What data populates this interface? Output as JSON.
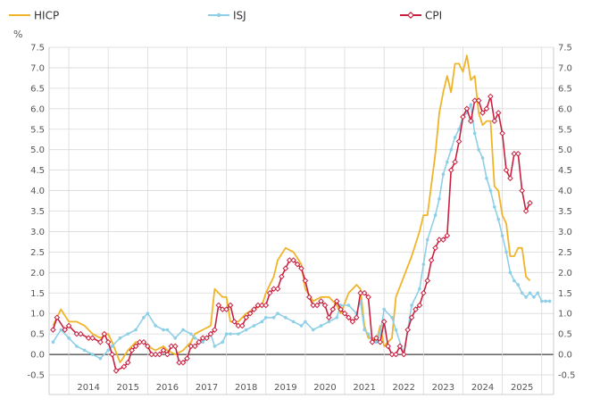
{
  "chart_data": {
    "type": "line",
    "unit_label": "%",
    "ylim": [
      -0.5,
      7.5
    ],
    "y_ticks": [
      "-0.5",
      "0.0",
      "0.5",
      "1.0",
      "1.5",
      "2.0",
      "2.5",
      "3.0",
      "3.5",
      "4.0",
      "4.5",
      "5.0",
      "5.5",
      "6.0",
      "6.5",
      "7.0",
      "7.5"
    ],
    "x_range": [
      2013.5,
      2025.7
    ],
    "year_labels": [
      "2014",
      "2015",
      "2016",
      "2017",
      "2018",
      "2019",
      "2020",
      "2021",
      "2022",
      "2023",
      "2024",
      "2025"
    ],
    "grid": true,
    "legend_position": "top",
    "series": [
      {
        "name": "HICP",
        "color": "#f0b429",
        "marker": "none",
        "points": [
          [
            2013.6,
            0.7
          ],
          [
            2013.8,
            1.1
          ],
          [
            2014.0,
            0.8
          ],
          [
            2014.2,
            0.8
          ],
          [
            2014.4,
            0.7
          ],
          [
            2014.6,
            0.5
          ],
          [
            2014.8,
            0.4
          ],
          [
            2015.0,
            0.5
          ],
          [
            2015.1,
            0.3
          ],
          [
            2015.3,
            -0.2
          ],
          [
            2015.5,
            0.1
          ],
          [
            2015.7,
            0.3
          ],
          [
            2015.9,
            0.3
          ],
          [
            2016.0,
            0.2
          ],
          [
            2016.2,
            0.1
          ],
          [
            2016.4,
            0.2
          ],
          [
            2016.5,
            0.1
          ],
          [
            2016.7,
            0.0
          ],
          [
            2016.9,
            0.1
          ],
          [
            2017.1,
            0.3
          ],
          [
            2017.2,
            0.5
          ],
          [
            2017.4,
            0.6
          ],
          [
            2017.6,
            0.7
          ],
          [
            2017.7,
            1.6
          ],
          [
            2017.9,
            1.4
          ],
          [
            2018.0,
            1.4
          ],
          [
            2018.1,
            0.8
          ],
          [
            2018.3,
            0.8
          ],
          [
            2018.5,
            1.0
          ],
          [
            2018.7,
            1.1
          ],
          [
            2018.9,
            1.2
          ],
          [
            2019.0,
            1.5
          ],
          [
            2019.2,
            1.9
          ],
          [
            2019.3,
            2.3
          ],
          [
            2019.5,
            2.6
          ],
          [
            2019.7,
            2.5
          ],
          [
            2019.9,
            2.2
          ],
          [
            2020.0,
            1.6
          ],
          [
            2020.2,
            1.3
          ],
          [
            2020.4,
            1.4
          ],
          [
            2020.6,
            1.4
          ],
          [
            2020.8,
            1.2
          ],
          [
            2020.9,
            1.0
          ],
          [
            2021.1,
            1.5
          ],
          [
            2021.3,
            1.7
          ],
          [
            2021.4,
            1.6
          ],
          [
            2021.5,
            0.7
          ],
          [
            2021.6,
            0.4
          ],
          [
            2021.7,
            0.4
          ],
          [
            2021.8,
            0.3
          ],
          [
            2021.9,
            0.7
          ],
          [
            2022.0,
            0.2
          ],
          [
            2022.2,
            0.4
          ],
          [
            2022.3,
            1.4
          ],
          [
            2022.5,
            1.9
          ],
          [
            2022.7,
            2.4
          ],
          [
            2022.9,
            3.0
          ],
          [
            2023.0,
            3.4
          ],
          [
            2023.1,
            3.4
          ],
          [
            2023.3,
            4.9
          ],
          [
            2023.4,
            5.9
          ],
          [
            2023.5,
            6.4
          ],
          [
            2023.6,
            6.8
          ],
          [
            2023.7,
            6.4
          ],
          [
            2023.8,
            7.1
          ],
          [
            2023.9,
            7.1
          ],
          [
            2024.0,
            6.9
          ],
          [
            2024.1,
            7.3
          ],
          [
            2024.2,
            6.7
          ],
          [
            2024.3,
            6.8
          ],
          [
            2024.4,
            5.9
          ],
          [
            2024.5,
            5.6
          ],
          [
            2024.6,
            5.7
          ],
          [
            2024.7,
            5.7
          ],
          [
            2024.8,
            4.1
          ],
          [
            2024.9,
            4.0
          ],
          [
            2025.0,
            3.4
          ],
          [
            2025.1,
            3.2
          ],
          [
            2025.2,
            2.4
          ],
          [
            2025.3,
            2.4
          ],
          [
            2025.4,
            2.6
          ],
          [
            2025.5,
            2.6
          ],
          [
            2025.6,
            1.9
          ],
          [
            2025.7,
            1.8
          ]
        ]
      },
      {
        "name": "ISJ",
        "color": "#8ecfe8",
        "marker": "dot",
        "points": [
          [
            2013.6,
            0.3
          ],
          [
            2013.8,
            0.6
          ],
          [
            2014.0,
            0.4
          ],
          [
            2014.2,
            0.2
          ],
          [
            2014.4,
            0.1
          ],
          [
            2014.6,
            0.0
          ],
          [
            2014.8,
            -0.1
          ],
          [
            2015.0,
            0.1
          ],
          [
            2015.1,
            0.2
          ],
          [
            2015.3,
            0.4
          ],
          [
            2015.5,
            0.5
          ],
          [
            2015.7,
            0.6
          ],
          [
            2015.9,
            0.9
          ],
          [
            2016.0,
            1.0
          ],
          [
            2016.2,
            0.7
          ],
          [
            2016.4,
            0.6
          ],
          [
            2016.5,
            0.6
          ],
          [
            2016.7,
            0.4
          ],
          [
            2016.9,
            0.6
          ],
          [
            2017.1,
            0.5
          ],
          [
            2017.2,
            0.4
          ],
          [
            2017.4,
            0.3
          ],
          [
            2017.6,
            0.5
          ],
          [
            2017.7,
            0.2
          ],
          [
            2017.9,
            0.3
          ],
          [
            2018.0,
            0.5
          ],
          [
            2018.1,
            0.5
          ],
          [
            2018.3,
            0.5
          ],
          [
            2018.5,
            0.6
          ],
          [
            2018.7,
            0.7
          ],
          [
            2018.9,
            0.8
          ],
          [
            2019.0,
            0.9
          ],
          [
            2019.2,
            0.9
          ],
          [
            2019.3,
            1.0
          ],
          [
            2019.5,
            0.9
          ],
          [
            2019.7,
            0.8
          ],
          [
            2019.9,
            0.7
          ],
          [
            2020.0,
            0.8
          ],
          [
            2020.2,
            0.6
          ],
          [
            2020.4,
            0.7
          ],
          [
            2020.6,
            0.8
          ],
          [
            2020.8,
            0.9
          ],
          [
            2020.9,
            1.2
          ],
          [
            2021.1,
            1.2
          ],
          [
            2021.3,
            1.0
          ],
          [
            2021.4,
            1.3
          ],
          [
            2021.5,
            0.6
          ],
          [
            2021.6,
            0.5
          ],
          [
            2021.7,
            0.3
          ],
          [
            2021.8,
            0.3
          ],
          [
            2021.9,
            0.5
          ],
          [
            2022.0,
            1.1
          ],
          [
            2022.2,
            0.9
          ],
          [
            2022.3,
            0.6
          ],
          [
            2022.5,
            0.0
          ],
          [
            2022.7,
            1.2
          ],
          [
            2022.9,
            1.6
          ],
          [
            2023.0,
            2.2
          ],
          [
            2023.1,
            2.8
          ],
          [
            2023.3,
            3.4
          ],
          [
            2023.4,
            3.8
          ],
          [
            2023.5,
            4.4
          ],
          [
            2023.6,
            4.7
          ],
          [
            2023.7,
            5.0
          ],
          [
            2023.8,
            5.3
          ],
          [
            2023.9,
            5.5
          ],
          [
            2024.0,
            5.8
          ],
          [
            2024.1,
            5.9
          ],
          [
            2024.2,
            6.1
          ],
          [
            2024.3,
            5.4
          ],
          [
            2024.4,
            5.0
          ],
          [
            2024.5,
            4.8
          ],
          [
            2024.6,
            4.3
          ],
          [
            2024.7,
            4.0
          ],
          [
            2024.8,
            3.6
          ],
          [
            2024.9,
            3.3
          ],
          [
            2025.0,
            2.9
          ],
          [
            2025.1,
            2.5
          ],
          [
            2025.2,
            2.0
          ],
          [
            2025.3,
            1.8
          ],
          [
            2025.4,
            1.7
          ],
          [
            2025.5,
            1.5
          ],
          [
            2025.6,
            1.4
          ],
          [
            2025.7,
            1.5
          ],
          [
            2025.8,
            1.4
          ],
          [
            2025.9,
            1.5
          ],
          [
            2026.0,
            1.3
          ],
          [
            2026.1,
            1.3
          ],
          [
            2026.2,
            1.3
          ]
        ]
      },
      {
        "name": "CPI",
        "color": "#c8203f",
        "marker": "diamond",
        "points": [
          [
            2013.6,
            0.6
          ],
          [
            2013.7,
            0.9
          ],
          [
            2013.9,
            0.6
          ],
          [
            2014.0,
            0.7
          ],
          [
            2014.2,
            0.5
          ],
          [
            2014.3,
            0.5
          ],
          [
            2014.5,
            0.4
          ],
          [
            2014.6,
            0.4
          ],
          [
            2014.8,
            0.3
          ],
          [
            2014.9,
            0.5
          ],
          [
            2015.0,
            0.3
          ],
          [
            2015.1,
            0.0
          ],
          [
            2015.2,
            -0.4
          ],
          [
            2015.4,
            -0.3
          ],
          [
            2015.5,
            -0.2
          ],
          [
            2015.6,
            0.1
          ],
          [
            2015.7,
            0.2
          ],
          [
            2015.8,
            0.3
          ],
          [
            2015.9,
            0.3
          ],
          [
            2016.0,
            0.2
          ],
          [
            2016.1,
            0.0
          ],
          [
            2016.2,
            0.0
          ],
          [
            2016.3,
            0.0
          ],
          [
            2016.4,
            0.1
          ],
          [
            2016.5,
            0.0
          ],
          [
            2016.6,
            0.2
          ],
          [
            2016.7,
            0.2
          ],
          [
            2016.8,
            -0.2
          ],
          [
            2016.9,
            -0.2
          ],
          [
            2017.0,
            -0.1
          ],
          [
            2017.1,
            0.2
          ],
          [
            2017.2,
            0.2
          ],
          [
            2017.3,
            0.3
          ],
          [
            2017.4,
            0.4
          ],
          [
            2017.5,
            0.4
          ],
          [
            2017.6,
            0.5
          ],
          [
            2017.7,
            0.6
          ],
          [
            2017.8,
            1.2
          ],
          [
            2017.9,
            1.1
          ],
          [
            2018.0,
            1.1
          ],
          [
            2018.1,
            1.2
          ],
          [
            2018.2,
            0.8
          ],
          [
            2018.3,
            0.7
          ],
          [
            2018.4,
            0.7
          ],
          [
            2018.5,
            0.9
          ],
          [
            2018.6,
            1.0
          ],
          [
            2018.7,
            1.1
          ],
          [
            2018.8,
            1.2
          ],
          [
            2018.9,
            1.2
          ],
          [
            2019.0,
            1.2
          ],
          [
            2019.1,
            1.5
          ],
          [
            2019.2,
            1.6
          ],
          [
            2019.3,
            1.6
          ],
          [
            2019.4,
            1.9
          ],
          [
            2019.5,
            2.1
          ],
          [
            2019.6,
            2.3
          ],
          [
            2019.7,
            2.3
          ],
          [
            2019.8,
            2.2
          ],
          [
            2019.9,
            2.1
          ],
          [
            2020.0,
            1.8
          ],
          [
            2020.1,
            1.4
          ],
          [
            2020.2,
            1.2
          ],
          [
            2020.3,
            1.2
          ],
          [
            2020.4,
            1.3
          ],
          [
            2020.5,
            1.2
          ],
          [
            2020.6,
            0.9
          ],
          [
            2020.7,
            1.1
          ],
          [
            2020.8,
            1.3
          ],
          [
            2020.9,
            1.1
          ],
          [
            2021.0,
            1.0
          ],
          [
            2021.1,
            0.9
          ],
          [
            2021.2,
            0.8
          ],
          [
            2021.3,
            0.9
          ],
          [
            2021.4,
            1.5
          ],
          [
            2021.5,
            1.5
          ],
          [
            2021.6,
            1.4
          ],
          [
            2021.7,
            0.3
          ],
          [
            2021.8,
            0.4
          ],
          [
            2021.9,
            0.3
          ],
          [
            2022.0,
            0.8
          ],
          [
            2022.1,
            0.2
          ],
          [
            2022.2,
            0.0
          ],
          [
            2022.3,
            0.0
          ],
          [
            2022.4,
            0.2
          ],
          [
            2022.5,
            0.0
          ],
          [
            2022.6,
            0.6
          ],
          [
            2022.7,
            0.9
          ],
          [
            2022.8,
            1.1
          ],
          [
            2022.9,
            1.2
          ],
          [
            2023.0,
            1.5
          ],
          [
            2023.1,
            1.8
          ],
          [
            2023.2,
            2.3
          ],
          [
            2023.3,
            2.6
          ],
          [
            2023.4,
            2.8
          ],
          [
            2023.5,
            2.8
          ],
          [
            2023.6,
            2.9
          ],
          [
            2023.7,
            4.5
          ],
          [
            2023.8,
            4.7
          ],
          [
            2023.9,
            5.2
          ],
          [
            2024.0,
            5.8
          ],
          [
            2024.1,
            6.0
          ],
          [
            2024.2,
            5.7
          ],
          [
            2024.3,
            6.2
          ],
          [
            2024.4,
            6.2
          ],
          [
            2024.5,
            5.9
          ],
          [
            2024.6,
            6.0
          ],
          [
            2024.7,
            6.3
          ],
          [
            2024.8,
            5.7
          ],
          [
            2024.9,
            5.9
          ],
          [
            2025.0,
            5.4
          ],
          [
            2025.1,
            4.5
          ],
          [
            2025.2,
            4.3
          ],
          [
            2025.3,
            4.9
          ],
          [
            2025.4,
            4.9
          ],
          [
            2025.5,
            4.0
          ],
          [
            2025.6,
            3.5
          ],
          [
            2025.7,
            3.7
          ]
        ]
      }
    ]
  }
}
